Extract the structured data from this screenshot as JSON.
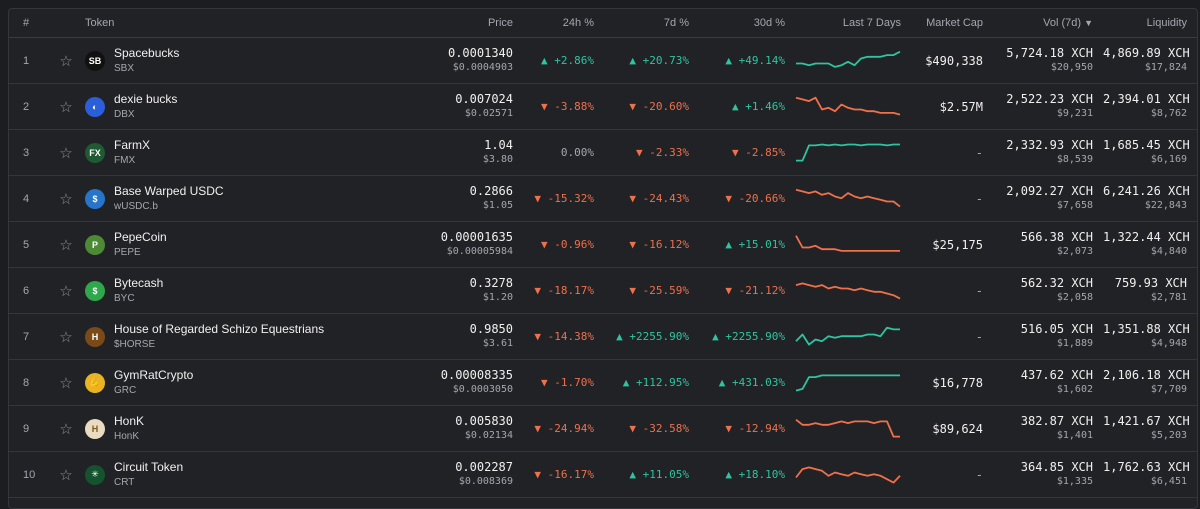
{
  "columns": {
    "index": "#",
    "token": "Token",
    "price": "Price",
    "change_24h": "24h %",
    "change_7d": "7d %",
    "change_30d": "30d %",
    "last7": "Last 7 Days",
    "market_cap": "Market Cap",
    "vol7d": "Vol (7d)",
    "sort_arrow": "▼",
    "liquidity": "Liquidity"
  },
  "colors": {
    "up": "#2ec4a2",
    "down": "#f0704a"
  },
  "rows": [
    {
      "index": "1",
      "name": "Spacebucks",
      "symbol": "SBX",
      "logo_icon": "spacebucks-logo-icon",
      "logo_bg": "#111111",
      "logo_text": "SB",
      "price": "0.0001340",
      "price_usd": "$0.0004903",
      "c24": "▲ +2.86%",
      "c24_dir": "up",
      "c7": "▲ +20.73%",
      "c7_dir": "up",
      "c30": "▲ +49.14%",
      "c30_dir": "up",
      "spark_dir": "up",
      "spark": [
        5,
        5,
        4,
        5,
        5,
        5,
        3,
        4,
        6,
        4,
        8,
        9,
        9,
        9,
        10,
        10,
        12
      ],
      "mcap": "$490,338",
      "vol": "5,724.18 XCH",
      "vol_usd": "$20,950",
      "liq": "4,869.89 XCH",
      "liq_usd": "$17,824"
    },
    {
      "index": "2",
      "name": "dexie bucks",
      "symbol": "DBX",
      "logo_icon": "dexie-logo-icon",
      "logo_bg": "#2b5fd9",
      "logo_text": "◐",
      "price": "0.007024",
      "price_usd": "$0.02571",
      "c24": "▼ -3.88%",
      "c24_dir": "down",
      "c7": "▼ -20.60%",
      "c7_dir": "down",
      "c30": "▲ +1.46%",
      "c30_dir": "up",
      "spark_dir": "down",
      "spark": [
        12,
        11,
        10,
        12,
        5,
        6,
        4,
        8,
        6,
        5,
        5,
        4,
        4,
        3,
        3,
        3,
        2
      ],
      "mcap": "$2.57M",
      "vol": "2,522.23 XCH",
      "vol_usd": "$9,231",
      "liq": "2,394.01 XCH",
      "liq_usd": "$8,762"
    },
    {
      "index": "3",
      "name": "FarmX",
      "symbol": "FMX",
      "logo_icon": "farmx-logo-icon",
      "logo_bg": "#1f5a32",
      "logo_text": "FX",
      "price": "1.04",
      "price_usd": "$3.80",
      "c24": "0.00%",
      "c24_dir": "flat",
      "c7": "▼ -2.33%",
      "c7_dir": "down",
      "c30": "▼ -2.85%",
      "c30_dir": "down",
      "spark_dir": "up",
      "spark": [
        2,
        2,
        11,
        11,
        11.5,
        11,
        11.5,
        11,
        11.5,
        11.5,
        11,
        11.5,
        11.5,
        11.5,
        11,
        11.5,
        11.5
      ],
      "mcap": "-",
      "vol": "2,332.93 XCH",
      "vol_usd": "$8,539",
      "liq": "1,685.45 XCH",
      "liq_usd": "$6,169"
    },
    {
      "index": "4",
      "name": "Base Warped USDC",
      "symbol": "wUSDC.b",
      "logo_icon": "usdc-logo-icon",
      "logo_bg": "#2775ca",
      "logo_text": "$",
      "price": "0.2866",
      "price_usd": "$1.05",
      "c24": "▼ -15.32%",
      "c24_dir": "down",
      "c7": "▼ -24.43%",
      "c7_dir": "down",
      "c30": "▼ -20.66%",
      "c30_dir": "down",
      "spark_dir": "down",
      "spark": [
        12,
        11,
        10,
        11,
        9,
        10,
        8,
        7,
        10,
        8,
        7,
        8,
        7,
        6,
        5,
        5,
        2
      ],
      "mcap": "-",
      "vol": "2,092.27 XCH",
      "vol_usd": "$7,658",
      "liq": "6,241.26 XCH",
      "liq_usd": "$22,843"
    },
    {
      "index": "5",
      "name": "PepeCoin",
      "symbol": "PEPE",
      "logo_icon": "pepe-logo-icon",
      "logo_bg": "#4c8a36",
      "logo_text": "P",
      "price": "0.00001635",
      "price_usd": "$0.00005984",
      "c24": "▼ -0.96%",
      "c24_dir": "down",
      "c7": "▼ -16.12%",
      "c7_dir": "down",
      "c30": "▲ +15.01%",
      "c30_dir": "up",
      "spark_dir": "down",
      "spark": [
        12,
        5,
        5,
        6,
        4,
        4,
        4,
        3,
        3,
        3,
        3,
        3,
        3,
        3,
        3,
        3,
        3
      ],
      "mcap": "$25,175",
      "vol": "566.38 XCH",
      "vol_usd": "$2,073",
      "liq": "1,322.44 XCH",
      "liq_usd": "$4,840"
    },
    {
      "index": "6",
      "name": "Bytecash",
      "symbol": "BYC",
      "logo_icon": "bytecash-logo-icon",
      "logo_bg": "#2ea84a",
      "logo_text": "$",
      "price": "0.3278",
      "price_usd": "$1.20",
      "c24": "▼ -18.17%",
      "c24_dir": "down",
      "c7": "▼ -25.59%",
      "c7_dir": "down",
      "c30": "▼ -21.12%",
      "c30_dir": "down",
      "spark_dir": "down",
      "spark": [
        10,
        11,
        10,
        9,
        10,
        8,
        9,
        8,
        8,
        7,
        8,
        7,
        6,
        6,
        5,
        4,
        2
      ],
      "mcap": "-",
      "vol": "562.32 XCH",
      "vol_usd": "$2,058",
      "liq": "759.93 XCH",
      "liq_usd": "$2,781"
    },
    {
      "index": "7",
      "name": "House of Regarded Schizo Equestrians",
      "symbol": "$HORSE",
      "logo_icon": "horse-logo-icon",
      "logo_bg": "#7a4a18",
      "logo_text": "H",
      "price": "0.9850",
      "price_usd": "$3.61",
      "c24": "▼ -14.38%",
      "c24_dir": "down",
      "c7": "▲ +2255.90%",
      "c7_dir": "up",
      "c30": "▲ +2255.90%",
      "c30_dir": "up",
      "spark_dir": "up",
      "spark": [
        4,
        8,
        2,
        5,
        4,
        7,
        6,
        7,
        7,
        7,
        7,
        8,
        8,
        7,
        12,
        11,
        11
      ],
      "mcap": "-",
      "vol": "516.05 XCH",
      "vol_usd": "$1,889",
      "liq": "1,351.88 XCH",
      "liq_usd": "$4,948"
    },
    {
      "index": "8",
      "name": "GymRatCrypto",
      "symbol": "GRC",
      "logo_icon": "flexed-bicep-icon",
      "logo_bg": "#e8b425",
      "logo_text": "💪",
      "price": "0.00008335",
      "price_usd": "$0.0003050",
      "c24": "▼ -1.70%",
      "c24_dir": "down",
      "c7": "▲ +112.95%",
      "c7_dir": "up",
      "c30": "▲ +431.03%",
      "c30_dir": "up",
      "spark_dir": "up",
      "spark": [
        2,
        3,
        10,
        10,
        11,
        11,
        11,
        11,
        11,
        11,
        11,
        11,
        11,
        11,
        11,
        11,
        11
      ],
      "mcap": "$16,778",
      "vol": "437.62 XCH",
      "vol_usd": "$1,602",
      "liq": "2,106.18 XCH",
      "liq_usd": "$7,709"
    },
    {
      "index": "9",
      "name": "HonK",
      "symbol": "HonK",
      "logo_icon": "goose-logo-icon",
      "logo_bg": "#e9dcc0",
      "logo_text": "H",
      "price": "0.005830",
      "price_usd": "$0.02134",
      "c24": "▼ -24.94%",
      "c24_dir": "down",
      "c7": "▼ -32.58%",
      "c7_dir": "down",
      "c30": "▼ -12.94%",
      "c30_dir": "down",
      "spark_dir": "down",
      "spark": [
        12,
        9,
        9,
        10,
        9,
        9,
        10,
        11,
        10,
        11,
        11,
        11,
        10,
        11,
        11,
        2,
        2
      ],
      "mcap": "$89,624",
      "vol": "382.87 XCH",
      "vol_usd": "$1,401",
      "liq": "1,421.67 XCH",
      "liq_usd": "$5,203"
    },
    {
      "index": "10",
      "name": "Circuit Token",
      "symbol": "CRT",
      "logo_icon": "circuit-logo-icon",
      "logo_bg": "#14532d",
      "logo_text": "✳",
      "price": "0.002287",
      "price_usd": "$0.008369",
      "c24": "▼ -16.17%",
      "c24_dir": "down",
      "c7": "▲ +11.05%",
      "c7_dir": "up",
      "c30": "▲ +18.10%",
      "c30_dir": "up",
      "spark_dir": "down",
      "spark": [
        5,
        10,
        11,
        10,
        9,
        6,
        8,
        7,
        6,
        8,
        7,
        6,
        7,
        6,
        4,
        2,
        6
      ],
      "mcap": "-",
      "vol": "364.85 XCH",
      "vol_usd": "$1,335",
      "liq": "1,762.63 XCH",
      "liq_usd": "$6,451"
    }
  ]
}
